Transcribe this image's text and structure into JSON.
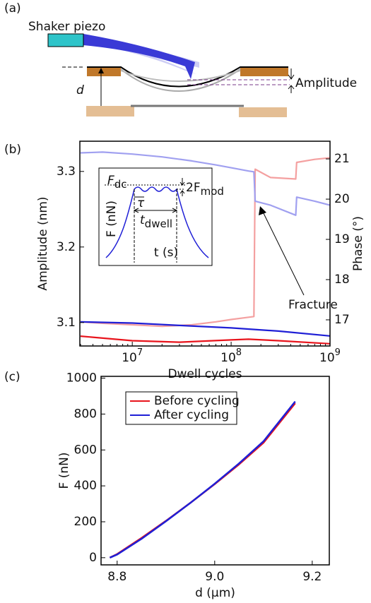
{
  "panels": {
    "a": "(a)",
    "b": "(b)",
    "c": "(c)"
  },
  "diagram": {
    "piezo": "Shaker piezo",
    "d": "d",
    "amplitude": "Amplitude"
  },
  "inset": {
    "fdc": {
      "symbol": "F",
      "sub": "dc"
    },
    "fmod": {
      "symbol": "2F",
      "sub": "mod"
    },
    "tau": "τ",
    "tdwell": {
      "symbol": "t",
      "sub": "dwell"
    },
    "ylabel": "F (nN)",
    "xlabel": "t (s)"
  },
  "chart_data": [
    {
      "type": "line",
      "xlabel": "Dwell cycles",
      "ylabel": "Amplitude (nm)",
      "y2label": "Phase (°)",
      "xlog": true,
      "xlim": [
        2950000,
        1000000000
      ],
      "xticks": [
        {
          "value": 10000000,
          "label": "10",
          "exponent": "7"
        },
        {
          "value": 100000000,
          "label": "10",
          "exponent": "8"
        },
        {
          "value": 1000000000,
          "label": "10",
          "exponent": "9"
        }
      ],
      "ylim": [
        3.069,
        3.34
      ],
      "yticks": [
        3.1,
        3.2,
        3.3
      ],
      "ycolor": "#e8141c",
      "y2lim": [
        16.35,
        21.44
      ],
      "y2ticks": [
        17,
        18,
        19,
        20,
        21
      ],
      "y2color": "#1f1fd6",
      "annotation": "Fracture",
      "series": [
        {
          "color": "#f4a0a0",
          "x": [
            3000000,
            5000000,
            10000000,
            20000000,
            40000000,
            70000000,
            100000000,
            150000000,
            170000000,
            175000000,
            250000000,
            450000000,
            460000000,
            700000000,
            1000000000
          ],
          "values": [
            3.101,
            3.099,
            3.097,
            3.095,
            3.097,
            3.101,
            3.104,
            3.107,
            3.108,
            3.303,
            3.292,
            3.29,
            3.312,
            3.316,
            3.318
          ]
        },
        {
          "color": "#a0a0f0",
          "axis": "y2",
          "x": [
            3000000,
            5000000,
            10000000,
            20000000,
            40000000,
            70000000,
            100000000,
            150000000,
            170000000,
            175000000,
            250000000,
            450000000,
            460000000,
            700000000,
            1000000000
          ],
          "values": [
            21.15,
            21.17,
            21.12,
            21.05,
            20.95,
            20.85,
            20.78,
            20.7,
            20.68,
            19.95,
            19.85,
            19.6,
            20.05,
            19.95,
            19.85
          ]
        },
        {
          "color": "#e8141c",
          "x": [
            3000000,
            10000000,
            30000000,
            100000000,
            150000000,
            300000000,
            1000000000
          ],
          "values": [
            3.082,
            3.076,
            3.074,
            3.077,
            3.078,
            3.076,
            3.072
          ]
        },
        {
          "color": "#1f1fd6",
          "axis": "y2",
          "x": [
            3000000,
            10000000,
            30000000,
            100000000,
            300000000,
            1000000000
          ],
          "values": [
            16.95,
            16.92,
            16.86,
            16.8,
            16.72,
            16.6
          ]
        }
      ]
    },
    {
      "type": "line",
      "xlabel": "d (μm)",
      "ylabel": "F (nN)",
      "xlog": false,
      "xlim": [
        8.767,
        9.235
      ],
      "xticks": [
        8.8,
        {
          "value": 9,
          "label": "9.0"
        },
        9.2
      ],
      "ylim": [
        -40,
        1010
      ],
      "yticks": [
        0,
        200,
        400,
        600,
        800,
        1000
      ],
      "series": [
        {
          "name": "Before cycling",
          "color": "#e8141c",
          "x": [
            8.785,
            8.8,
            8.85,
            8.9,
            8.95,
            9.0,
            9.05,
            9.1,
            9.165
          ],
          "values": [
            0,
            20,
            110,
            205,
            305,
            410,
            520,
            640,
            860
          ]
        },
        {
          "name": "After cycling",
          "color": "#1f1fd6",
          "x": [
            8.785,
            8.8,
            8.85,
            8.9,
            8.95,
            9.0,
            9.05,
            9.1,
            9.165
          ],
          "values": [
            0,
            18,
            105,
            203,
            305,
            412,
            525,
            648,
            870
          ]
        }
      ]
    }
  ]
}
